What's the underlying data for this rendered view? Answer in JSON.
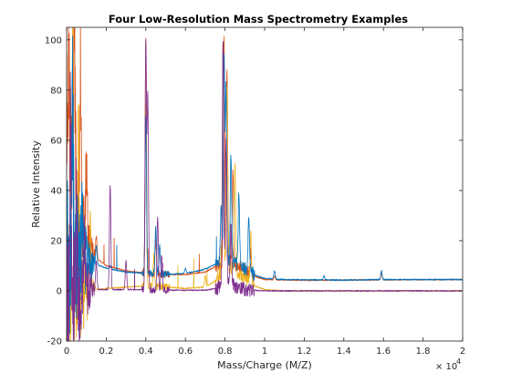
{
  "chart_data": {
    "type": "line",
    "title": "Four Low-Resolution Mass Spectrometry Examples",
    "xlabel": "Mass/Charge (M/Z)",
    "ylabel": "Relative Intensity",
    "x_exponent_label": "× 10",
    "x_exponent": "4",
    "xlim": [
      0,
      20000
    ],
    "ylim": [
      -20,
      105
    ],
    "x_ticks": [
      0,
      2000,
      4000,
      6000,
      8000,
      10000,
      12000,
      14000,
      16000,
      18000,
      20000
    ],
    "x_tick_labels": [
      "0",
      "0.2",
      "0.4",
      "0.6",
      "0.8",
      "1",
      "1.2",
      "1.4",
      "1.6",
      "1.8",
      "2"
    ],
    "y_ticks": [
      -20,
      0,
      20,
      40,
      60,
      80,
      100
    ],
    "y_tick_labels": [
      "-20",
      "0",
      "20",
      "40",
      "60",
      "80",
      "100"
    ],
    "grid": false,
    "series_colors": [
      "#0072BD",
      "#D95319",
      "#EDB120",
      "#7E2F8E"
    ],
    "series": [
      {
        "baseline": [
          [
            0,
            18
          ],
          [
            500,
            14
          ],
          [
            1000,
            12
          ],
          [
            2000,
            9
          ],
          [
            3000,
            7.5
          ],
          [
            4000,
            7
          ],
          [
            5000,
            6.5
          ],
          [
            6000,
            7
          ],
          [
            7000,
            8.5
          ],
          [
            7600,
            11
          ],
          [
            8000,
            12
          ],
          [
            8500,
            11
          ],
          [
            9000,
            9
          ],
          [
            9600,
            6
          ],
          [
            10000,
            5
          ],
          [
            11000,
            4.5
          ],
          [
            14000,
            4.3
          ],
          [
            16000,
            4.5
          ],
          [
            20000,
            4.5
          ]
        ],
        "peaks": [
          [
            300,
            75
          ],
          [
            800,
            32
          ],
          [
            1500,
            18
          ],
          [
            2200,
            10
          ],
          [
            4000,
            68
          ],
          [
            4500,
            26
          ],
          [
            4700,
            18
          ],
          [
            6000,
            9
          ],
          [
            7000,
            9
          ],
          [
            7800,
            35
          ],
          [
            7950,
            92
          ],
          [
            8050,
            80
          ],
          [
            8300,
            55
          ],
          [
            8700,
            38
          ],
          [
            9200,
            29
          ],
          [
            10500,
            8
          ],
          [
            13000,
            6
          ],
          [
            15900,
            8
          ]
        ]
      },
      {
        "baseline": [
          [
            0,
            60
          ],
          [
            300,
            50
          ],
          [
            600,
            35
          ],
          [
            1000,
            22
          ],
          [
            1500,
            13
          ],
          [
            2000,
            10
          ],
          [
            3000,
            8
          ],
          [
            4000,
            7
          ],
          [
            5000,
            6.5
          ],
          [
            6000,
            6.5
          ],
          [
            7000,
            7.5
          ],
          [
            7600,
            10
          ],
          [
            8000,
            12
          ],
          [
            8500,
            11
          ],
          [
            9000,
            8
          ],
          [
            9600,
            5.5
          ],
          [
            10000,
            4.5
          ],
          [
            12000,
            4.2
          ],
          [
            16000,
            4.4
          ],
          [
            20000,
            4.5
          ]
        ],
        "peaks": [
          [
            100,
            100
          ],
          [
            400,
            100
          ],
          [
            700,
            92
          ],
          [
            1000,
            52
          ],
          [
            1500,
            22
          ],
          [
            4000,
            100
          ],
          [
            4500,
            20
          ],
          [
            7950,
            100
          ],
          [
            8100,
            90
          ],
          [
            8400,
            50
          ],
          [
            9300,
            15
          ],
          [
            10500,
            6
          ],
          [
            15900,
            7
          ]
        ]
      },
      {
        "baseline": [
          [
            0,
            -8
          ],
          [
            500,
            -3
          ],
          [
            1000,
            0
          ],
          [
            2000,
            1
          ],
          [
            3000,
            1.5
          ],
          [
            4000,
            2
          ],
          [
            5000,
            1.5
          ],
          [
            6000,
            1
          ],
          [
            7000,
            1.5
          ],
          [
            7500,
            4
          ],
          [
            8000,
            10
          ],
          [
            8500,
            9
          ],
          [
            9000,
            5
          ],
          [
            9500,
            2
          ],
          [
            10000,
            0.5
          ],
          [
            11000,
            0
          ],
          [
            20000,
            0
          ]
        ],
        "peaks": [
          [
            300,
            100
          ],
          [
            600,
            60
          ],
          [
            1200,
            30
          ],
          [
            4000,
            76
          ],
          [
            4400,
            14
          ],
          [
            7000,
            6
          ],
          [
            7900,
            100
          ],
          [
            8100,
            82
          ],
          [
            8500,
            50
          ],
          [
            9300,
            22
          ]
        ]
      },
      {
        "baseline": [
          [
            0,
            -12
          ],
          [
            300,
            -5
          ],
          [
            700,
            0
          ],
          [
            1000,
            0.5
          ],
          [
            2000,
            0.5
          ],
          [
            4000,
            0.5
          ],
          [
            6000,
            0.2
          ],
          [
            7000,
            0.3
          ],
          [
            7600,
            1
          ],
          [
            8000,
            3
          ],
          [
            8400,
            2
          ],
          [
            9000,
            0.5
          ],
          [
            10000,
            0
          ],
          [
            20000,
            0
          ]
        ],
        "peaks": [
          [
            200,
            78
          ],
          [
            500,
            45
          ],
          [
            900,
            20
          ],
          [
            1500,
            12
          ],
          [
            2200,
            42
          ],
          [
            3000,
            12
          ],
          [
            4000,
            100
          ],
          [
            4100,
            77
          ],
          [
            4600,
            30
          ],
          [
            4800,
            14
          ],
          [
            7900,
            100
          ],
          [
            8050,
            60
          ],
          [
            8300,
            25
          ]
        ]
      }
    ]
  }
}
